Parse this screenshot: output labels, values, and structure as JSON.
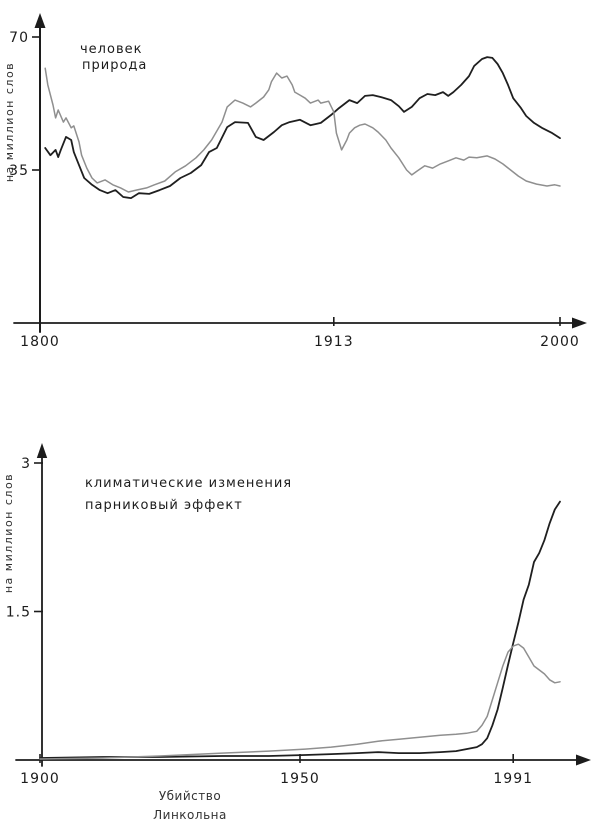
{
  "ink_color": "#1c1c1c",
  "chart_data": [
    {
      "type": "line",
      "title": "",
      "ylabel": "на миллион слов",
      "xlabel": "",
      "xlim": [
        1800,
        2000
      ],
      "x_ticks": [
        1800,
        1913,
        2000
      ],
      "x_tick_labels": [
        "1800",
        "1913",
        "2000"
      ],
      "y_ticks": [
        70,
        35
      ],
      "y_tick_labels": [
        "70",
        "35"
      ],
      "grid": false,
      "legend_position": "inside-top-left",
      "series": [
        {
          "name": "человек",
          "color": "#1f1f1f",
          "x": [
            1802,
            1804,
            1806,
            1807,
            1808,
            1810,
            1812,
            1813,
            1815,
            1817,
            1820,
            1823,
            1826,
            1829,
            1832,
            1835,
            1838,
            1842,
            1846,
            1850,
            1854,
            1858,
            1862,
            1865,
            1868,
            1872,
            1875,
            1880,
            1883,
            1886,
            1890,
            1893,
            1896,
            1900,
            1904,
            1908,
            1912,
            1915,
            1919,
            1922,
            1925,
            1928,
            1931,
            1935,
            1938,
            1940,
            1943,
            1946,
            1949,
            1952,
            1955,
            1957,
            1959,
            1962,
            1965,
            1967,
            1970,
            1972,
            1974,
            1976,
            1978,
            1980,
            1982,
            1985,
            1987,
            1990,
            1993,
            1997,
            2000
          ],
          "values": [
            40.8,
            38.9,
            40.3,
            38.4,
            40.3,
            43.7,
            42.9,
            39.7,
            36.3,
            32.9,
            31.1,
            29.7,
            28.9,
            29.7,
            27.9,
            27.6,
            28.9,
            28.7,
            29.7,
            30.8,
            32.9,
            34.2,
            36.3,
            39.7,
            40.8,
            46.3,
            47.6,
            47.4,
            43.7,
            42.9,
            45.0,
            46.8,
            47.6,
            48.2,
            46.8,
            47.4,
            49.5,
            51.3,
            53.4,
            52.6,
            54.5,
            54.7,
            54.2,
            53.4,
            51.8,
            50.3,
            51.6,
            53.9,
            55.0,
            54.7,
            55.5,
            54.5,
            55.5,
            57.4,
            59.7,
            62.4,
            64.2,
            64.7,
            64.5,
            62.9,
            60.5,
            57.4,
            53.9,
            51.3,
            49.2,
            47.4,
            46.1,
            44.7,
            43.4
          ]
        },
        {
          "name": "природа",
          "color": "#8f8f8f",
          "x": [
            1802,
            1803,
            1805,
            1806,
            1807,
            1809,
            1810,
            1812,
            1813,
            1815,
            1816,
            1818,
            1820,
            1822,
            1825,
            1828,
            1831,
            1834,
            1837,
            1841,
            1844,
            1848,
            1852,
            1856,
            1860,
            1863,
            1866,
            1870,
            1872,
            1875,
            1878,
            1881,
            1883,
            1886,
            1888,
            1889,
            1891,
            1893,
            1895,
            1897,
            1898,
            1900,
            1902,
            1904,
            1907,
            1908,
            1911,
            1913,
            1914,
            1916,
            1918,
            1919,
            1921,
            1923,
            1925,
            1928,
            1930,
            1933,
            1935,
            1938,
            1941,
            1943,
            1945,
            1948,
            1951,
            1954,
            1957,
            1960,
            1963,
            1965,
            1968,
            1972,
            1975,
            1978,
            1981,
            1984,
            1987,
            1991,
            1995,
            1998,
            2000
          ],
          "values": [
            61.8,
            57.4,
            52.1,
            48.7,
            50.8,
            47.6,
            48.7,
            46.1,
            46.6,
            42.4,
            38.9,
            35.5,
            32.9,
            31.6,
            32.4,
            31.1,
            30.3,
            29.2,
            29.7,
            30.3,
            31.1,
            32.1,
            34.5,
            36.1,
            38.2,
            40.3,
            42.9,
            47.6,
            51.6,
            53.4,
            52.6,
            51.6,
            52.6,
            54.2,
            56.1,
            58.2,
            60.5,
            59.2,
            59.7,
            57.4,
            55.5,
            54.7,
            53.9,
            52.6,
            53.4,
            52.6,
            53.1,
            50.3,
            44.7,
            40.3,
            42.9,
            44.7,
            46.1,
            46.8,
            47.1,
            46.1,
            45.0,
            42.9,
            40.8,
            38.2,
            35.0,
            33.7,
            34.7,
            36.1,
            35.5,
            36.6,
            37.4,
            38.2,
            37.6,
            38.4,
            38.2,
            38.7,
            37.9,
            36.6,
            35.0,
            33.4,
            32.1,
            31.3,
            30.8,
            31.1,
            30.8
          ]
        }
      ]
    },
    {
      "type": "line",
      "title": "",
      "ylabel": "на миллион слов",
      "xlabel": "",
      "xlim": [
        1900,
        2000
      ],
      "x_ticks": [
        1900,
        1950,
        1991
      ],
      "x_tick_labels": [
        "1900",
        "1950",
        "1991"
      ],
      "y_ticks": [
        3,
        1.5
      ],
      "y_tick_labels": [
        "3",
        "1.5"
      ],
      "grid": false,
      "legend_position": "inside-top-left",
      "annotation": {
        "text_lines": [
          "Убийство",
          "Линкольна"
        ],
        "x_year": 1929,
        "position": "below-x-axis"
      },
      "series": [
        {
          "name": "климатические изменения",
          "color": "#1f1f1f",
          "x": [
            1900,
            1912,
            1923,
            1935,
            1944,
            1951,
            1956,
            1961,
            1965,
            1969,
            1973,
            1977,
            1980,
            1982,
            1984,
            1985,
            1986,
            1987,
            1988,
            1989,
            1990,
            1991,
            1992,
            1993,
            1994,
            1995,
            1996,
            1997,
            1998,
            1999,
            2000
          ],
          "values": [
            0.02,
            0.03,
            0.03,
            0.04,
            0.04,
            0.05,
            0.06,
            0.07,
            0.08,
            0.07,
            0.07,
            0.08,
            0.09,
            0.11,
            0.13,
            0.16,
            0.22,
            0.35,
            0.51,
            0.73,
            0.96,
            1.18,
            1.39,
            1.62,
            1.77,
            2.0,
            2.09,
            2.22,
            2.39,
            2.53,
            2.61
          ]
        },
        {
          "name": "парниковый эффект",
          "color": "#8f8f8f",
          "x": [
            1900,
            1912,
            1923,
            1935,
            1944,
            1951,
            1956,
            1961,
            1965,
            1969,
            1973,
            1977,
            1980,
            1982,
            1984,
            1985,
            1986,
            1987,
            1988,
            1989,
            1990,
            1991,
            1992,
            1993,
            1994,
            1995,
            1997,
            1998,
            1999,
            2000
          ],
          "values": [
            0.01,
            0.02,
            0.04,
            0.07,
            0.09,
            0.11,
            0.13,
            0.16,
            0.19,
            0.21,
            0.23,
            0.25,
            0.26,
            0.27,
            0.29,
            0.35,
            0.44,
            0.61,
            0.78,
            0.95,
            1.09,
            1.15,
            1.17,
            1.13,
            1.04,
            0.95,
            0.87,
            0.81,
            0.78,
            0.79
          ]
        }
      ]
    }
  ]
}
